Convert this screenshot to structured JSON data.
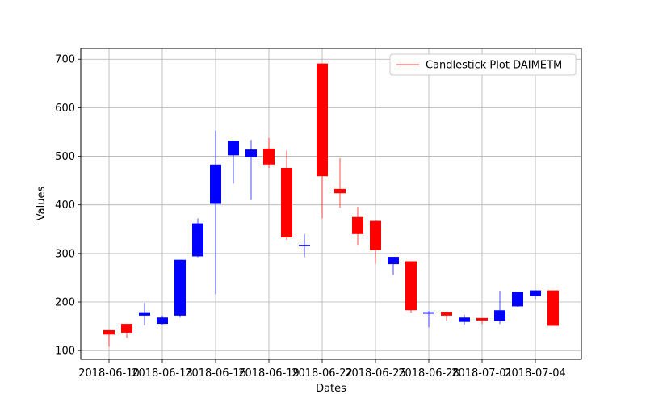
{
  "chart_data": {
    "type": "candlestick",
    "xlabel": "Dates",
    "ylabel": "Values",
    "ylim": [
      82,
      722
    ],
    "yticks": [
      100,
      200,
      300,
      400,
      500,
      600,
      700
    ],
    "xticks": [
      "2018-06-10",
      "2018-06-13",
      "2018-06-16",
      "2018-06-19",
      "2018-06-22",
      "2018-06-25",
      "2018-06-28",
      "2018-07-01",
      "2018-07-04"
    ],
    "x_start": "2018-06-10",
    "grid": true,
    "legend": {
      "position": "top-right",
      "label": "Candlestick Plot DAIMETM"
    },
    "colors": {
      "up": "#0000ff",
      "down": "#ff0000",
      "grid": "#b0b0b0",
      "legend_line": "#ff0000"
    },
    "candles": [
      {
        "date": "2018-06-10",
        "open": 142,
        "high": 142,
        "low": 108,
        "close": 133
      },
      {
        "date": "2018-06-11",
        "open": 155,
        "high": 155,
        "low": 126,
        "close": 137
      },
      {
        "date": "2018-06-12",
        "open": 172,
        "high": 198,
        "low": 152,
        "close": 179
      },
      {
        "date": "2018-06-13",
        "open": 155,
        "high": 172,
        "low": 153,
        "close": 168
      },
      {
        "date": "2018-06-14",
        "open": 172,
        "high": 287,
        "low": 168,
        "close": 287
      },
      {
        "date": "2018-06-15",
        "open": 294,
        "high": 372,
        "low": 292,
        "close": 362
      },
      {
        "date": "2018-06-16",
        "open": 402,
        "high": 553,
        "low": 216,
        "close": 483
      },
      {
        "date": "2018-06-17",
        "open": 502,
        "high": 532,
        "low": 444,
        "close": 532
      },
      {
        "date": "2018-06-18",
        "open": 498,
        "high": 534,
        "low": 410,
        "close": 514
      },
      {
        "date": "2018-06-19",
        "open": 516,
        "high": 538,
        "low": 476,
        "close": 483
      },
      {
        "date": "2018-06-20",
        "open": 476,
        "high": 512,
        "low": 328,
        "close": 333
      },
      {
        "date": "2018-06-21",
        "open": 315,
        "high": 340,
        "low": 292,
        "close": 318
      },
      {
        "date": "2018-06-22",
        "open": 691,
        "high": 691,
        "low": 372,
        "close": 459
      },
      {
        "date": "2018-06-23",
        "open": 433,
        "high": 496,
        "low": 394,
        "close": 424
      },
      {
        "date": "2018-06-24",
        "open": 375,
        "high": 396,
        "low": 316,
        "close": 340
      },
      {
        "date": "2018-06-25",
        "open": 367,
        "high": 368,
        "low": 279,
        "close": 307
      },
      {
        "date": "2018-06-26",
        "open": 278,
        "high": 293,
        "low": 256,
        "close": 293
      },
      {
        "date": "2018-06-27",
        "open": 284,
        "high": 284,
        "low": 178,
        "close": 183
      },
      {
        "date": "2018-06-28",
        "open": 176,
        "high": 181,
        "low": 148,
        "close": 179
      },
      {
        "date": "2018-06-29",
        "open": 180,
        "high": 180,
        "low": 161,
        "close": 172
      },
      {
        "date": "2018-06-30",
        "open": 159,
        "high": 174,
        "low": 153,
        "close": 168
      },
      {
        "date": "2018-07-01",
        "open": 167,
        "high": 167,
        "low": 155,
        "close": 162
      },
      {
        "date": "2018-07-02",
        "open": 161,
        "high": 223,
        "low": 155,
        "close": 183
      },
      {
        "date": "2018-07-03",
        "open": 191,
        "high": 221,
        "low": 190,
        "close": 221
      },
      {
        "date": "2018-07-04",
        "open": 212,
        "high": 224,
        "low": 206,
        "close": 224
      },
      {
        "date": "2018-07-05",
        "open": 224,
        "high": 224,
        "low": 151,
        "close": 151
      }
    ]
  }
}
